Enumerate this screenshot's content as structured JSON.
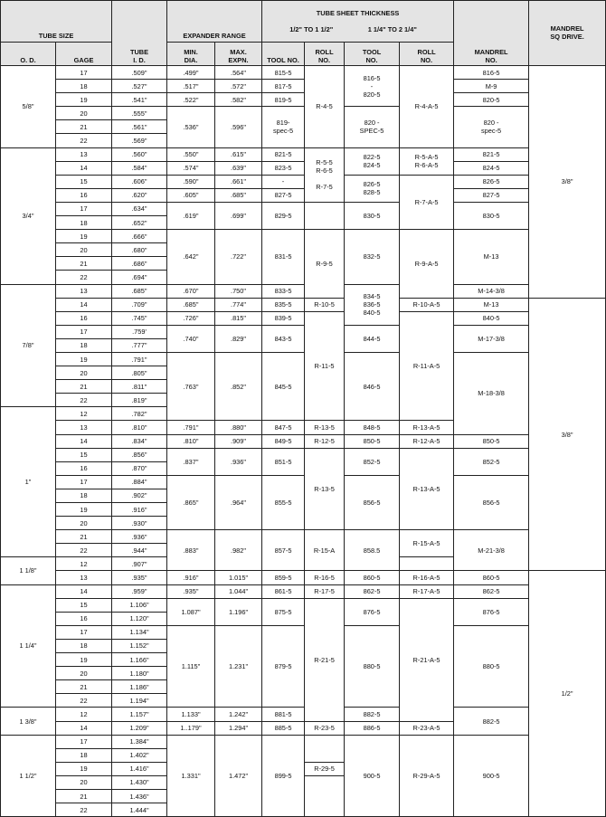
{
  "header": {
    "tube_size": "TUBE SIZE",
    "tube_id": "TUBE\nI. D.",
    "expander_range": "EXPANDER RANGE",
    "tube_sheet_thickness": "TUBE SHEET THICKNESS",
    "range_a": "1/2\" TO 1 1/2\"",
    "range_b": "1 1/4\" TO 2 1/4\"",
    "mandrel_no": "MANDREL\nNO.",
    "mandrel_sq_drive": "MANDREL\nSQ DRIVE.",
    "od": "O. D.",
    "gage": "GAGE",
    "min_dia": "MIN.\nDIA.",
    "max_expn": "MAX.\nEXPN.",
    "tool_no_a": "TOOL NO.",
    "roll_no_a": "ROLL\nNO.",
    "tool_no_b": "TOOL\nNO.",
    "roll_no_b": "ROLL\nNO."
  },
  "body": {
    "columns": [
      "od",
      "gage",
      "tube-id",
      "min-dia",
      "max-expn",
      "tool-no-a",
      "roll-no-a",
      "tool-no-b",
      "roll-no-b",
      "mandrel-no",
      "mandrel-sq-drive"
    ],
    "rows": [
      [
        [
          "5/8\"",
          6
        ],
        "17",
        ".509\"",
        ".499\"",
        ".564\"",
        "815-5",
        [
          "R-4-5",
          6
        ],
        [
          "816-5\n-\n820-5",
          3
        ],
        [
          "R-4-A-5",
          6
        ],
        "816-5",
        [
          "3/8\"",
          17
        ]
      ],
      [
        "18",
        ".527\"",
        ".517\"",
        ".572\"",
        "817-5",
        "M-9"
      ],
      [
        "19",
        ".541\"",
        ".522\"",
        ".582\"",
        "819-5",
        "820-5"
      ],
      [
        "20",
        ".555\"",
        [
          ".536\"",
          3
        ],
        [
          ".596\"",
          3
        ],
        [
          "819-\nspec-5",
          3
        ],
        [
          "820 -\nSPEC-5",
          3
        ],
        [
          "820 -\nspec-5",
          3
        ]
      ],
      [
        "21",
        ".561\""
      ],
      [
        "22",
        ".569\""
      ],
      [
        [
          "3/4\"",
          10
        ],
        "13",
        ".560\"",
        ".550\"",
        ".615\"",
        "821-5",
        [
          "R-5-5\nR-6-5\n\nR-7-5",
          4
        ],
        [
          "822-5\n824-5",
          2
        ],
        [
          "R-5-A-5\nR-6-A-5",
          2
        ],
        "821-5"
      ],
      [
        "14",
        ".584\"",
        ".574\"",
        ".639\"",
        "823-5",
        "824-5"
      ],
      [
        "15",
        ".606\"",
        ".590\"",
        ".661\"",
        "-",
        [
          "826-5\n828-5",
          2
        ],
        [
          "R-7-A-5",
          4
        ],
        "826-5"
      ],
      [
        "16",
        ".620\"",
        ".605\"",
        ".685\"",
        "827-5",
        "827-5"
      ],
      [
        "17",
        ".634\"",
        [
          ".619\"",
          2
        ],
        [
          ".699\"",
          2
        ],
        [
          "829-5",
          2
        ],
        [
          "",
          2
        ],
        [
          "830-5",
          2
        ],
        [
          "830-5",
          2
        ]
      ],
      [
        "18",
        ".652\""
      ],
      [
        "19",
        ".666\"",
        [
          ".642\"",
          4
        ],
        [
          ".722\"",
          4
        ],
        [
          "831-5",
          4
        ],
        [
          "R-9-5",
          5
        ],
        [
          "832-5",
          4
        ],
        [
          "R-9-A-5",
          5
        ],
        [
          "M-13",
          4
        ]
      ],
      [
        "20",
        ".680\""
      ],
      [
        "21",
        ".686\""
      ],
      [
        "22",
        ".694\""
      ],
      [
        [
          "7/8\"",
          9
        ],
        "13",
        ".685\"",
        ".670\"",
        ".750\"",
        "833-5",
        [
          "834-5\n836-5\n840-5",
          3
        ],
        "M-14-3/8"
      ],
      [
        "14",
        ".709\"",
        ".685\"",
        ".774\"",
        "835-5",
        "R-10-5",
        "R-10-A-5",
        "M-13",
        [
          "3/8\"",
          20
        ]
      ],
      [
        "16",
        ".745\"",
        ".726\"",
        ".815\"",
        "839-5",
        [
          "R-11-5",
          8
        ],
        [
          "R-11-A-5",
          8
        ],
        "840-5"
      ],
      [
        "17",
        ".759'",
        [
          ".740\"",
          2
        ],
        [
          ".829\"",
          2
        ],
        [
          "843-5",
          2
        ],
        [
          "844-5",
          2
        ],
        [
          "M-17-3/8",
          2
        ]
      ],
      [
        "18",
        ".777\""
      ],
      [
        "19",
        ".791\"",
        [
          ".763\"",
          5
        ],
        [
          ".852\"",
          5
        ],
        [
          "845-5",
          5
        ],
        [
          "846-5",
          5
        ],
        [
          "M-18-3/8",
          6
        ]
      ],
      [
        "20",
        ".805\""
      ],
      [
        "21",
        ".811\""
      ],
      [
        "22",
        ".819\""
      ],
      [
        [
          "1\"",
          11
        ],
        "12",
        ".782\""
      ],
      [
        "13",
        ".810\"",
        ".791\"",
        ".880\"",
        "847-5",
        "R-13-5",
        "848-5",
        "R-13-A-5"
      ],
      [
        "14",
        ".834\"",
        ".810\"",
        ".909\"",
        "849-5",
        "R-12-5",
        "850-5",
        "R-12-A-5",
        "850-5"
      ],
      [
        "15",
        ".856\"",
        [
          ".837\"",
          2
        ],
        [
          ".936\"",
          2
        ],
        [
          "851-5",
          2
        ],
        [
          "R-13-5",
          6
        ],
        [
          "852-5",
          2
        ],
        [
          "R-13-A-5",
          6
        ],
        [
          "852-5",
          2
        ]
      ],
      [
        "16",
        ".870\""
      ],
      [
        "17",
        ".884\"",
        [
          ".865\"",
          4
        ],
        [
          ".964\"",
          4
        ],
        [
          "855-5",
          4
        ],
        [
          "856-5",
          4
        ],
        [
          "856-5",
          4
        ]
      ],
      [
        "18",
        ".902\""
      ],
      [
        "19",
        ".916\""
      ],
      [
        "20",
        ".930\""
      ],
      [
        "21",
        ".936\"",
        [
          ".883\"",
          3
        ],
        [
          ".982\"",
          3
        ],
        [
          "857-5",
          3
        ],
        [
          "R-15-A",
          3
        ],
        [
          "858.5",
          3
        ],
        [
          "R-15-A-5",
          2
        ],
        [
          "M-21-3/8",
          3
        ]
      ],
      [
        "22",
        ".944\""
      ],
      [
        [
          "1 1/8\"",
          2
        ],
        "12",
        ".907\"",
        ""
      ],
      [
        "13",
        ".935\"",
        ".916\"",
        "1.015\"",
        "859-5",
        "R-16-5",
        "860-5",
        "R-16-A-5",
        "860-5",
        [
          "1/2\"",
          18
        ]
      ],
      [
        [
          "1 1/4\"",
          9
        ],
        "14",
        ".959\"",
        ".935\"",
        "1.044\"",
        "861-5",
        "R-17-5",
        "862-5",
        "R-17-A-5",
        "862-5"
      ],
      [
        "15",
        "1.106\"",
        [
          "1.087\"",
          2
        ],
        [
          "1.196\"",
          2
        ],
        [
          "875-5",
          2
        ],
        [
          "R-21-5",
          9
        ],
        [
          "876-5",
          2
        ],
        [
          "R-21-A-5",
          9
        ],
        [
          "876-5",
          2
        ]
      ],
      [
        "16",
        "1.120\""
      ],
      [
        "17",
        "1.134\"",
        [
          "1.115\"",
          6
        ],
        [
          "1.231\"",
          6
        ],
        [
          "879-5",
          6
        ],
        [
          "880-5",
          6
        ],
        [
          "880-5",
          6
        ]
      ],
      [
        "18",
        "1.152\""
      ],
      [
        "19",
        "1.166\""
      ],
      [
        "20",
        "1.180\""
      ],
      [
        "21",
        "1.186\""
      ],
      [
        "22",
        "1.194\""
      ],
      [
        [
          "1 3/8\"",
          2
        ],
        "12",
        "1.157\"",
        "1.133\"",
        "1.242\"",
        "881-5",
        "882-5",
        [
          "882-5",
          2
        ]
      ],
      [
        "14",
        "1.209\"",
        "1..179\"",
        "1.294\"",
        "885-5",
        "R-23-5",
        "886-5",
        "R-23-A-5"
      ],
      [
        [
          "1 1/2\"",
          6
        ],
        "17",
        "1.384\"",
        [
          "1.331\"",
          6
        ],
        [
          "1.472\"",
          6
        ],
        [
          "899-5",
          6
        ],
        [
          "",
          2
        ],
        [
          "900-5",
          6
        ],
        [
          "R-29-A-5",
          6
        ],
        [
          "900-5",
          6
        ]
      ],
      [
        "18",
        "1.402\""
      ],
      [
        "19",
        "1.416\"",
        "R-29-5"
      ],
      [
        "20",
        "1.430\"",
        [
          "",
          3
        ]
      ],
      [
        "21",
        "1.436\""
      ],
      [
        "22",
        "1.444\""
      ]
    ]
  }
}
